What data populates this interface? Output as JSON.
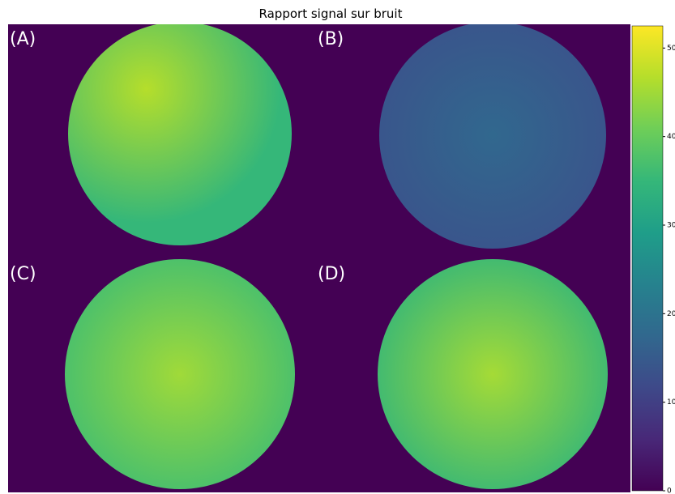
{
  "chart_data": {
    "type": "image",
    "title": "Rapport signal sur bruit",
    "panels": [
      {
        "label": "(A)",
        "inner_color": "#b5de2b",
        "outer_color": "#35b779"
      },
      {
        "label": "(B)",
        "inner_color": "#31688e",
        "outer_color": "#3b528b"
      },
      {
        "label": "(C)",
        "inner_color": "#a0da39",
        "outer_color": "#3dbc74"
      },
      {
        "label": "(D)",
        "inner_color": "#a5db36",
        "outer_color": "#2fb47c"
      }
    ],
    "background": "#440154",
    "colormap": [
      "#440154",
      "#482878",
      "#3e4989",
      "#31688e",
      "#26828e",
      "#1f9e89",
      "#35b779",
      "#6ece58",
      "#b5de2b",
      "#fde725"
    ],
    "clim": [
      0,
      52.5
    ],
    "cticks": [
      0,
      10,
      20,
      30,
      40,
      50
    ]
  }
}
